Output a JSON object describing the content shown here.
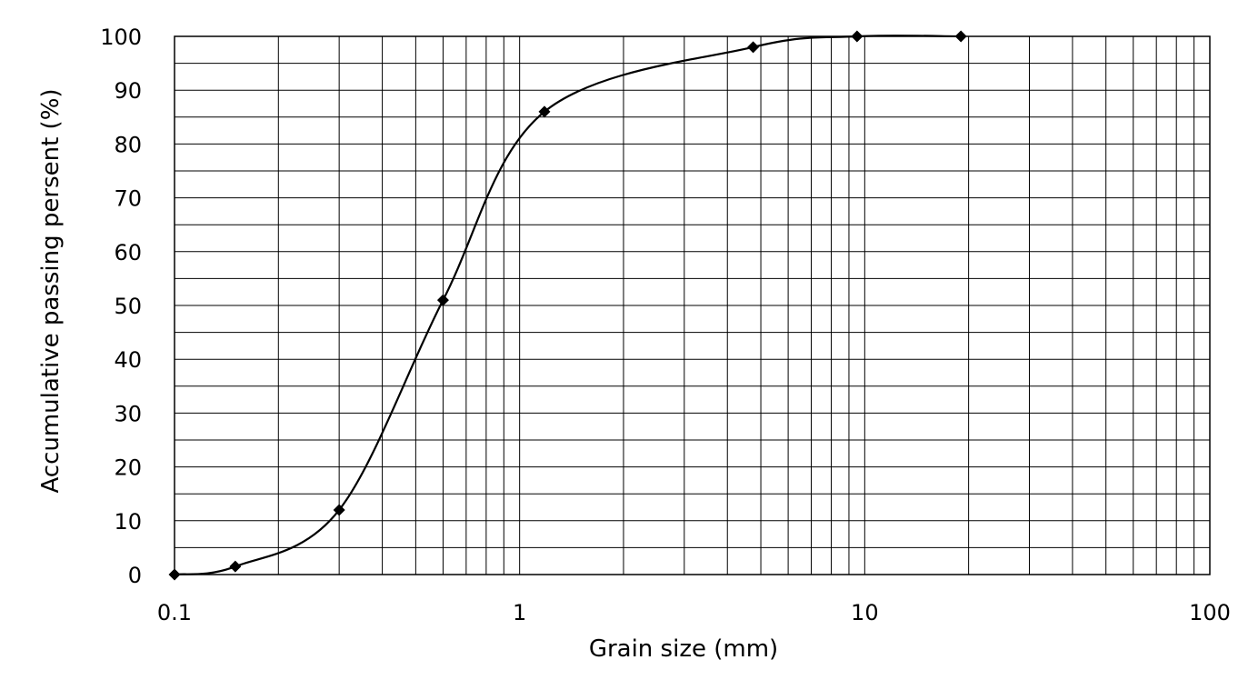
{
  "chart_data": {
    "type": "scatter",
    "title": "",
    "xlabel": "Grain size (mm)",
    "ylabel": "Accumulative passing persent (%)",
    "x_scale": "log",
    "xlim": [
      0.1,
      100
    ],
    "ylim": [
      0,
      100
    ],
    "grid": true,
    "legend": "none",
    "smooth_line": true,
    "marker": "diamond",
    "line_color": "#000000",
    "x_ticks": [
      0.1,
      1,
      10,
      100
    ],
    "x_tick_labels": [
      "0.1",
      "1",
      "10",
      "100"
    ],
    "y_ticks": [
      0,
      10,
      20,
      30,
      40,
      50,
      60,
      70,
      80,
      90,
      100
    ],
    "y_tick_labels": [
      "0",
      "10",
      "20",
      "30",
      "40",
      "50",
      "60",
      "70",
      "80",
      "90",
      "100"
    ],
    "series": [
      {
        "x": [
          0.1,
          0.15,
          0.3,
          0.6,
          1.18,
          4.75,
          9.5,
          19
        ],
        "y": [
          0,
          1.5,
          12,
          51,
          86,
          98,
          100,
          100
        ]
      }
    ]
  }
}
